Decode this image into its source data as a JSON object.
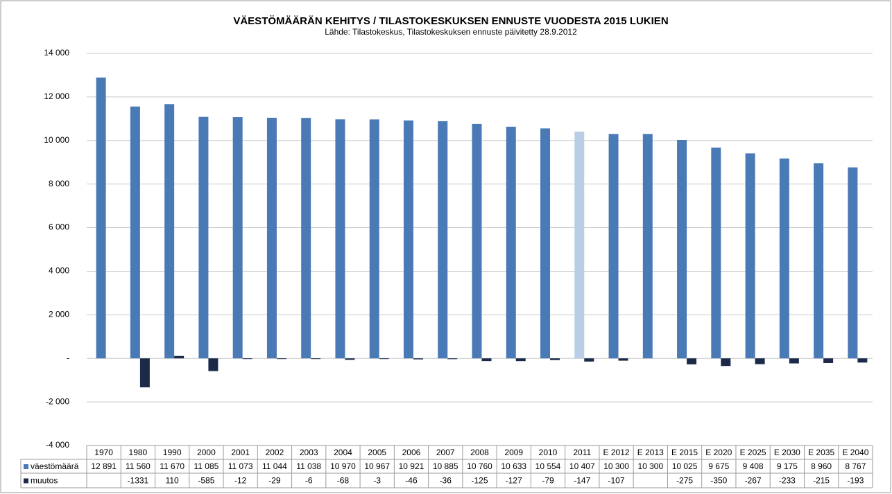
{
  "chart_data": {
    "type": "bar",
    "title": "VÄESTÖMÄÄRÄN KEHITYS / TILASTOKESKUKSEN ENNUSTE VUODESTA 2015 LUKIEN",
    "subtitle": "Lähde: Tilastokeskus, Tilastokeskuksen ennuste päivitetty  28.9.2012",
    "categories": [
      "1970",
      "1980",
      "1990",
      "2000",
      "2001",
      "2002",
      "2003",
      "2004",
      "2005",
      "2006",
      "2007",
      "2008",
      "2009",
      "2010",
      "2011",
      "E 2012",
      "E 2013",
      "E 2015",
      "E 2020",
      "E 2025",
      "E 2030",
      "E 2035",
      "E 2040"
    ],
    "series": [
      {
        "name": "väestömäärä",
        "color": "#4a7ab5",
        "colors": [
          "#4a7ab5",
          "#4a7ab5",
          "#4a7ab5",
          "#4a7ab5",
          "#4a7ab5",
          "#4a7ab5",
          "#4a7ab5",
          "#4a7ab5",
          "#4a7ab5",
          "#4a7ab5",
          "#4a7ab5",
          "#4a7ab5",
          "#4a7ab5",
          "#4a7ab5",
          "#b9cde5",
          "#4a7ab5",
          "#4a7ab5",
          "#4a7ab5",
          "#4a7ab5",
          "#4a7ab5",
          "#4a7ab5",
          "#4a7ab5",
          "#4a7ab5"
        ],
        "values": [
          12891,
          11560,
          11670,
          11085,
          11073,
          11044,
          11038,
          10970,
          10967,
          10921,
          10885,
          10760,
          10633,
          10554,
          10407,
          10300,
          10300,
          10025,
          9675,
          9408,
          9175,
          8960,
          8767
        ],
        "value_labels": [
          "12 891",
          "11 560",
          "11 670",
          "11 085",
          "11 073",
          "11 044",
          "11 038",
          "10 970",
          "10 967",
          "10 921",
          "10 885",
          "10 760",
          "10 633",
          "10 554",
          "10 407",
          "10 300",
          "10 300",
          "10 025",
          "9 675",
          "9 408",
          "9 175",
          "8 960",
          "8 767"
        ]
      },
      {
        "name": "muutos",
        "color": "#1c2a4a",
        "values": [
          null,
          -1331,
          110,
          -585,
          -12,
          -29,
          -6,
          -68,
          -3,
          -46,
          -36,
          -125,
          -127,
          -79,
          -147,
          -107,
          null,
          -275,
          -350,
          -267,
          -233,
          -215,
          -193
        ]
      }
    ],
    "ylim": [
      -4000,
      14000
    ],
    "yticks": [
      {
        "value": -4000,
        "label": "-4 000"
      },
      {
        "value": -2000,
        "label": "-2 000"
      },
      {
        "value": 0,
        "label": "-"
      },
      {
        "value": 2000,
        "label": "2 000"
      },
      {
        "value": 4000,
        "label": "4 000"
      },
      {
        "value": 6000,
        "label": "6 000"
      },
      {
        "value": 8000,
        "label": "8 000"
      },
      {
        "value": 10000,
        "label": "10 000"
      },
      {
        "value": 12000,
        "label": "12 000"
      },
      {
        "value": 14000,
        "label": "14 000"
      }
    ],
    "grid": true
  }
}
